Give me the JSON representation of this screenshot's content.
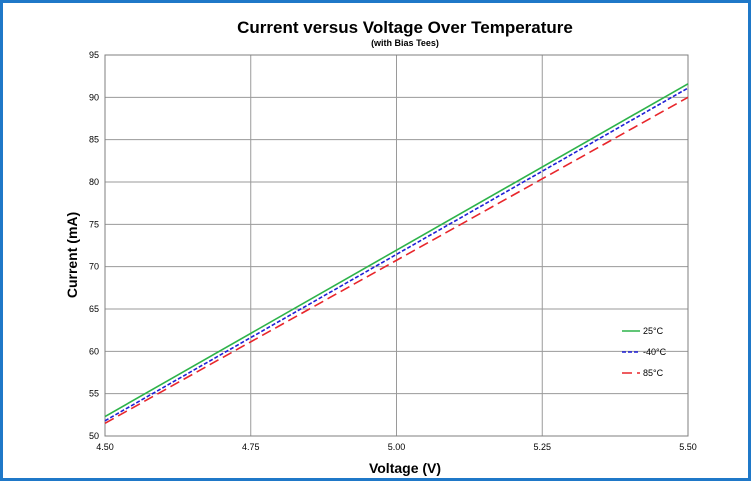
{
  "chart_data": {
    "type": "line",
    "title": "Current versus Voltage Over Temperature",
    "subtitle": "(with Bias Tees)",
    "xlabel": "Voltage (V)",
    "ylabel": "Current (mA)",
    "xlim": [
      4.5,
      5.5
    ],
    "ylim": [
      50,
      95
    ],
    "xticks": [
      "4.50",
      "4.75",
      "5.00",
      "5.25",
      "5.50"
    ],
    "yticks": [
      "50",
      "55",
      "60",
      "65",
      "70",
      "75",
      "80",
      "85",
      "90",
      "95"
    ],
    "grid": true,
    "legend_position": "right",
    "series": [
      {
        "name": "25°C",
        "color": "#2db34a",
        "dash": "solid",
        "x": [
          4.5,
          5.5
        ],
        "y": [
          52.3,
          91.6
        ]
      },
      {
        "name": "-40°C",
        "color": "#1f1fd6",
        "dash": "dotted",
        "x": [
          4.5,
          5.5
        ],
        "y": [
          51.8,
          91.1
        ]
      },
      {
        "name": "85°C",
        "color": "#e8262b",
        "dash": "dashed",
        "x": [
          4.5,
          5.5
        ],
        "y": [
          51.5,
          90.0
        ]
      }
    ]
  }
}
